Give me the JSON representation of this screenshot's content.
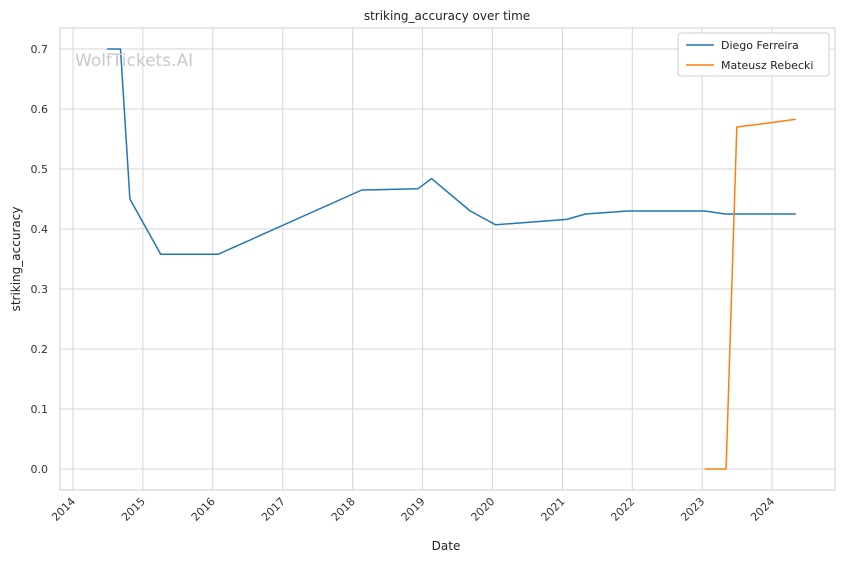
{
  "watermark": "WolfTickets.AI",
  "chart_data": {
    "type": "line",
    "title": "striking_accuracy over time",
    "xlabel": "Date",
    "ylabel": "striking_accuracy",
    "x_ticks": [
      "2014",
      "2015",
      "2016",
      "2017",
      "2018",
      "2019",
      "2020",
      "2021",
      "2022",
      "2023",
      "2024"
    ],
    "y_ticks": [
      "0.0",
      "0.1",
      "0.2",
      "0.3",
      "0.4",
      "0.5",
      "0.6",
      "0.7"
    ],
    "xlim": [
      "2013-10-25",
      "2024-11-25"
    ],
    "ylim": [
      -0.035,
      0.735
    ],
    "grid": true,
    "legend_position": "top-right",
    "series": [
      {
        "name": "Diego Ferreira",
        "color": "#1f77b4",
        "points": [
          {
            "x": "2014-06-28",
            "y": 0.7
          },
          {
            "x": "2014-09-06",
            "y": 0.7
          },
          {
            "x": "2014-10-25",
            "y": 0.45
          },
          {
            "x": "2015-04-04",
            "y": 0.358
          },
          {
            "x": "2016-01-30",
            "y": 0.358
          },
          {
            "x": "2018-02-18",
            "y": 0.465
          },
          {
            "x": "2018-12-08",
            "y": 0.467
          },
          {
            "x": "2019-02-17",
            "y": 0.484
          },
          {
            "x": "2019-09-07",
            "y": 0.43
          },
          {
            "x": "2020-01-18",
            "y": 0.407
          },
          {
            "x": "2021-01-24",
            "y": 0.416
          },
          {
            "x": "2021-05-01",
            "y": 0.425
          },
          {
            "x": "2021-12-11",
            "y": 0.43
          },
          {
            "x": "2023-01-14",
            "y": 0.43
          },
          {
            "x": "2023-05-01",
            "y": 0.425
          },
          {
            "x": "2024-05-04",
            "y": 0.425
          }
        ]
      },
      {
        "name": "Mateusz Rebecki",
        "color": "#ff7f0e",
        "points": [
          {
            "x": "2023-01-14",
            "y": 0.0
          },
          {
            "x": "2023-05-06",
            "y": 0.0
          },
          {
            "x": "2023-07-01",
            "y": 0.57
          },
          {
            "x": "2023-11-04",
            "y": 0.575
          },
          {
            "x": "2024-05-04",
            "y": 0.583
          }
        ]
      }
    ]
  }
}
